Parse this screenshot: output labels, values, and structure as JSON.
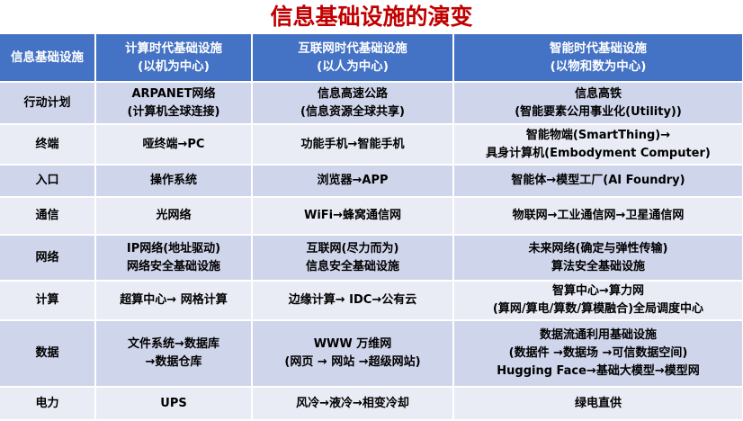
{
  "title": "信息基础设施的演变",
  "header": [
    "信息基础设施",
    [
      "计算时代基础设施",
      "(以机为中心)"
    ],
    [
      "互联网时代基础设施",
      "(以人为中心)"
    ],
    [
      "智能时代基础设施",
      "(以物和数为中心)"
    ]
  ],
  "rows": [
    {
      "label": "行动计划",
      "cells": [
        [
          "ARPANET网络",
          "(计算机全球连接)"
        ],
        [
          "信息高速公路",
          "(信息资源全球共享)"
        ],
        [
          "信息高铁",
          "(智能要素公用事业化(Utility))"
        ]
      ]
    },
    {
      "label": "终端",
      "cells": [
        [
          "哑终端→PC"
        ],
        [
          "功能手机→智能手机"
        ],
        [
          "智能物端(SmartThing)→",
          "具身计算机(Embodyment Computer)"
        ]
      ]
    },
    {
      "label": "入口",
      "cells": [
        [
          "操作系统"
        ],
        [
          "浏览器→APP"
        ],
        [
          "智能体→模型工厂(AI Foundry)"
        ]
      ]
    },
    {
      "label": "通信",
      "cells": [
        [
          "光网络"
        ],
        [
          "WiFi→蜂窝通信网"
        ],
        [
          "物联网→工业通信网→卫星通信网"
        ]
      ]
    },
    {
      "label": "网络",
      "cells": [
        [
          "IP网络(地址驱动)",
          "网络安全基础设施"
        ],
        [
          "互联网(尽力而为)",
          "信息安全基础设施"
        ],
        [
          "未来网络(确定与弹性传输)",
          "算法安全基础设施"
        ]
      ]
    },
    {
      "label": "计算",
      "cells": [
        [
          "超算中心→ 网格计算"
        ],
        [
          "边缘计算→ IDC→公有云"
        ],
        [
          "智算中心→算力网",
          "(算网/算电/算数/算模融合)全局调度中心"
        ]
      ]
    },
    {
      "label": "数据",
      "cells": [
        [
          "文件系统→数据库",
          "→数据仓库"
        ],
        [
          "WWW 万维网",
          "(网页 → 网站 →超级网站)"
        ],
        [
          "数据流通利用基础设施",
          "(数据件 →数据场 →可信数据空间)",
          "Hugging Face→基础大模型→模型网"
        ]
      ]
    },
    {
      "label": "电力",
      "cells": [
        [
          "UPS"
        ],
        [
          "风冷→液冷→相变冷却"
        ],
        [
          "绿电直供"
        ]
      ]
    }
  ]
}
